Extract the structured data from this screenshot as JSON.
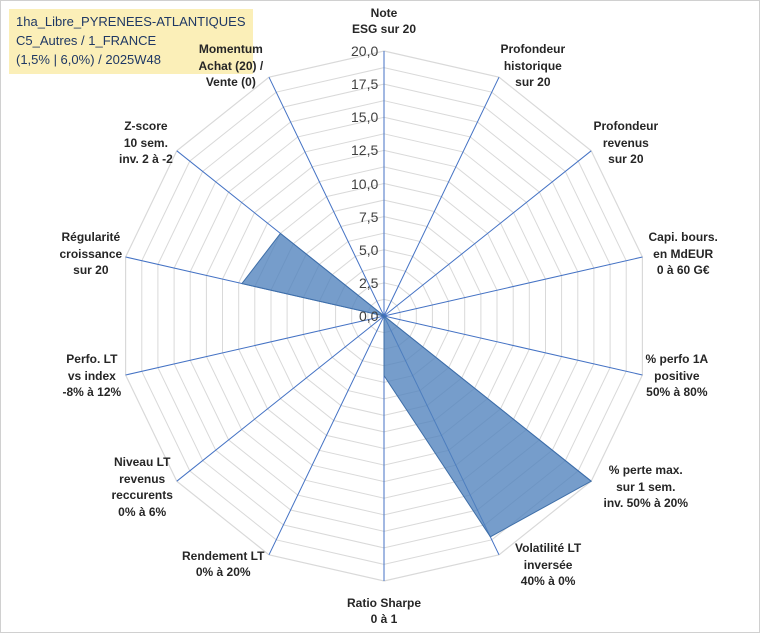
{
  "chart_data": {
    "type": "radar",
    "title_lines": [
      "1ha_Libre_PYRENEES-ATLANTIQUES",
      "C5_Autres / 1_FRANCE",
      "(1,5% | 6,0%) / 2025W48"
    ],
    "axes": [
      "Note\nESG sur 20",
      "Profondeur\nhistorique\nsur 20",
      "Profondeur\nrevenus\nsur 20",
      "Capi. bours.\nen MdEUR\n0 à 60 G€",
      "% perfo 1A\npositive\n50% à 80%",
      "% perte max.\nsur 1 sem.\ninv. 50% à 20%",
      "Volatilité LT\ninversée\n40% à 0%",
      "Ratio Sharpe\n0 à 1",
      "Rendement LT\n0% à 20%",
      "Niveau LT\nrevenus\nreccurents\n0% à 6%",
      "Perfo. LT\nvs index\n-8% à 12%",
      "Régularité\ncroissance\nsur 20",
      "Z-score\n10 sem.\ninv. 2 à -2",
      "Momentum\nAchat (20) /\nVente (0)"
    ],
    "series": [
      {
        "values": [
          0,
          0,
          0,
          0,
          0,
          20,
          18.5,
          4.5,
          0,
          0,
          0,
          11,
          10,
          0
        ]
      }
    ],
    "rlim": [
      0,
      20
    ],
    "rticks": [
      "0,0",
      "2,5",
      "5,0",
      "7,5",
      "10,0",
      "12,5",
      "15,0",
      "17,5",
      "20,0"
    ],
    "grid": true,
    "legend": "none",
    "colors": {
      "fill": "#4f81bd",
      "stroke": "#3f6fa8",
      "grid": "#d9d9d9",
      "spoke": "#4472c4",
      "title_bg": "#fbefb8"
    }
  }
}
